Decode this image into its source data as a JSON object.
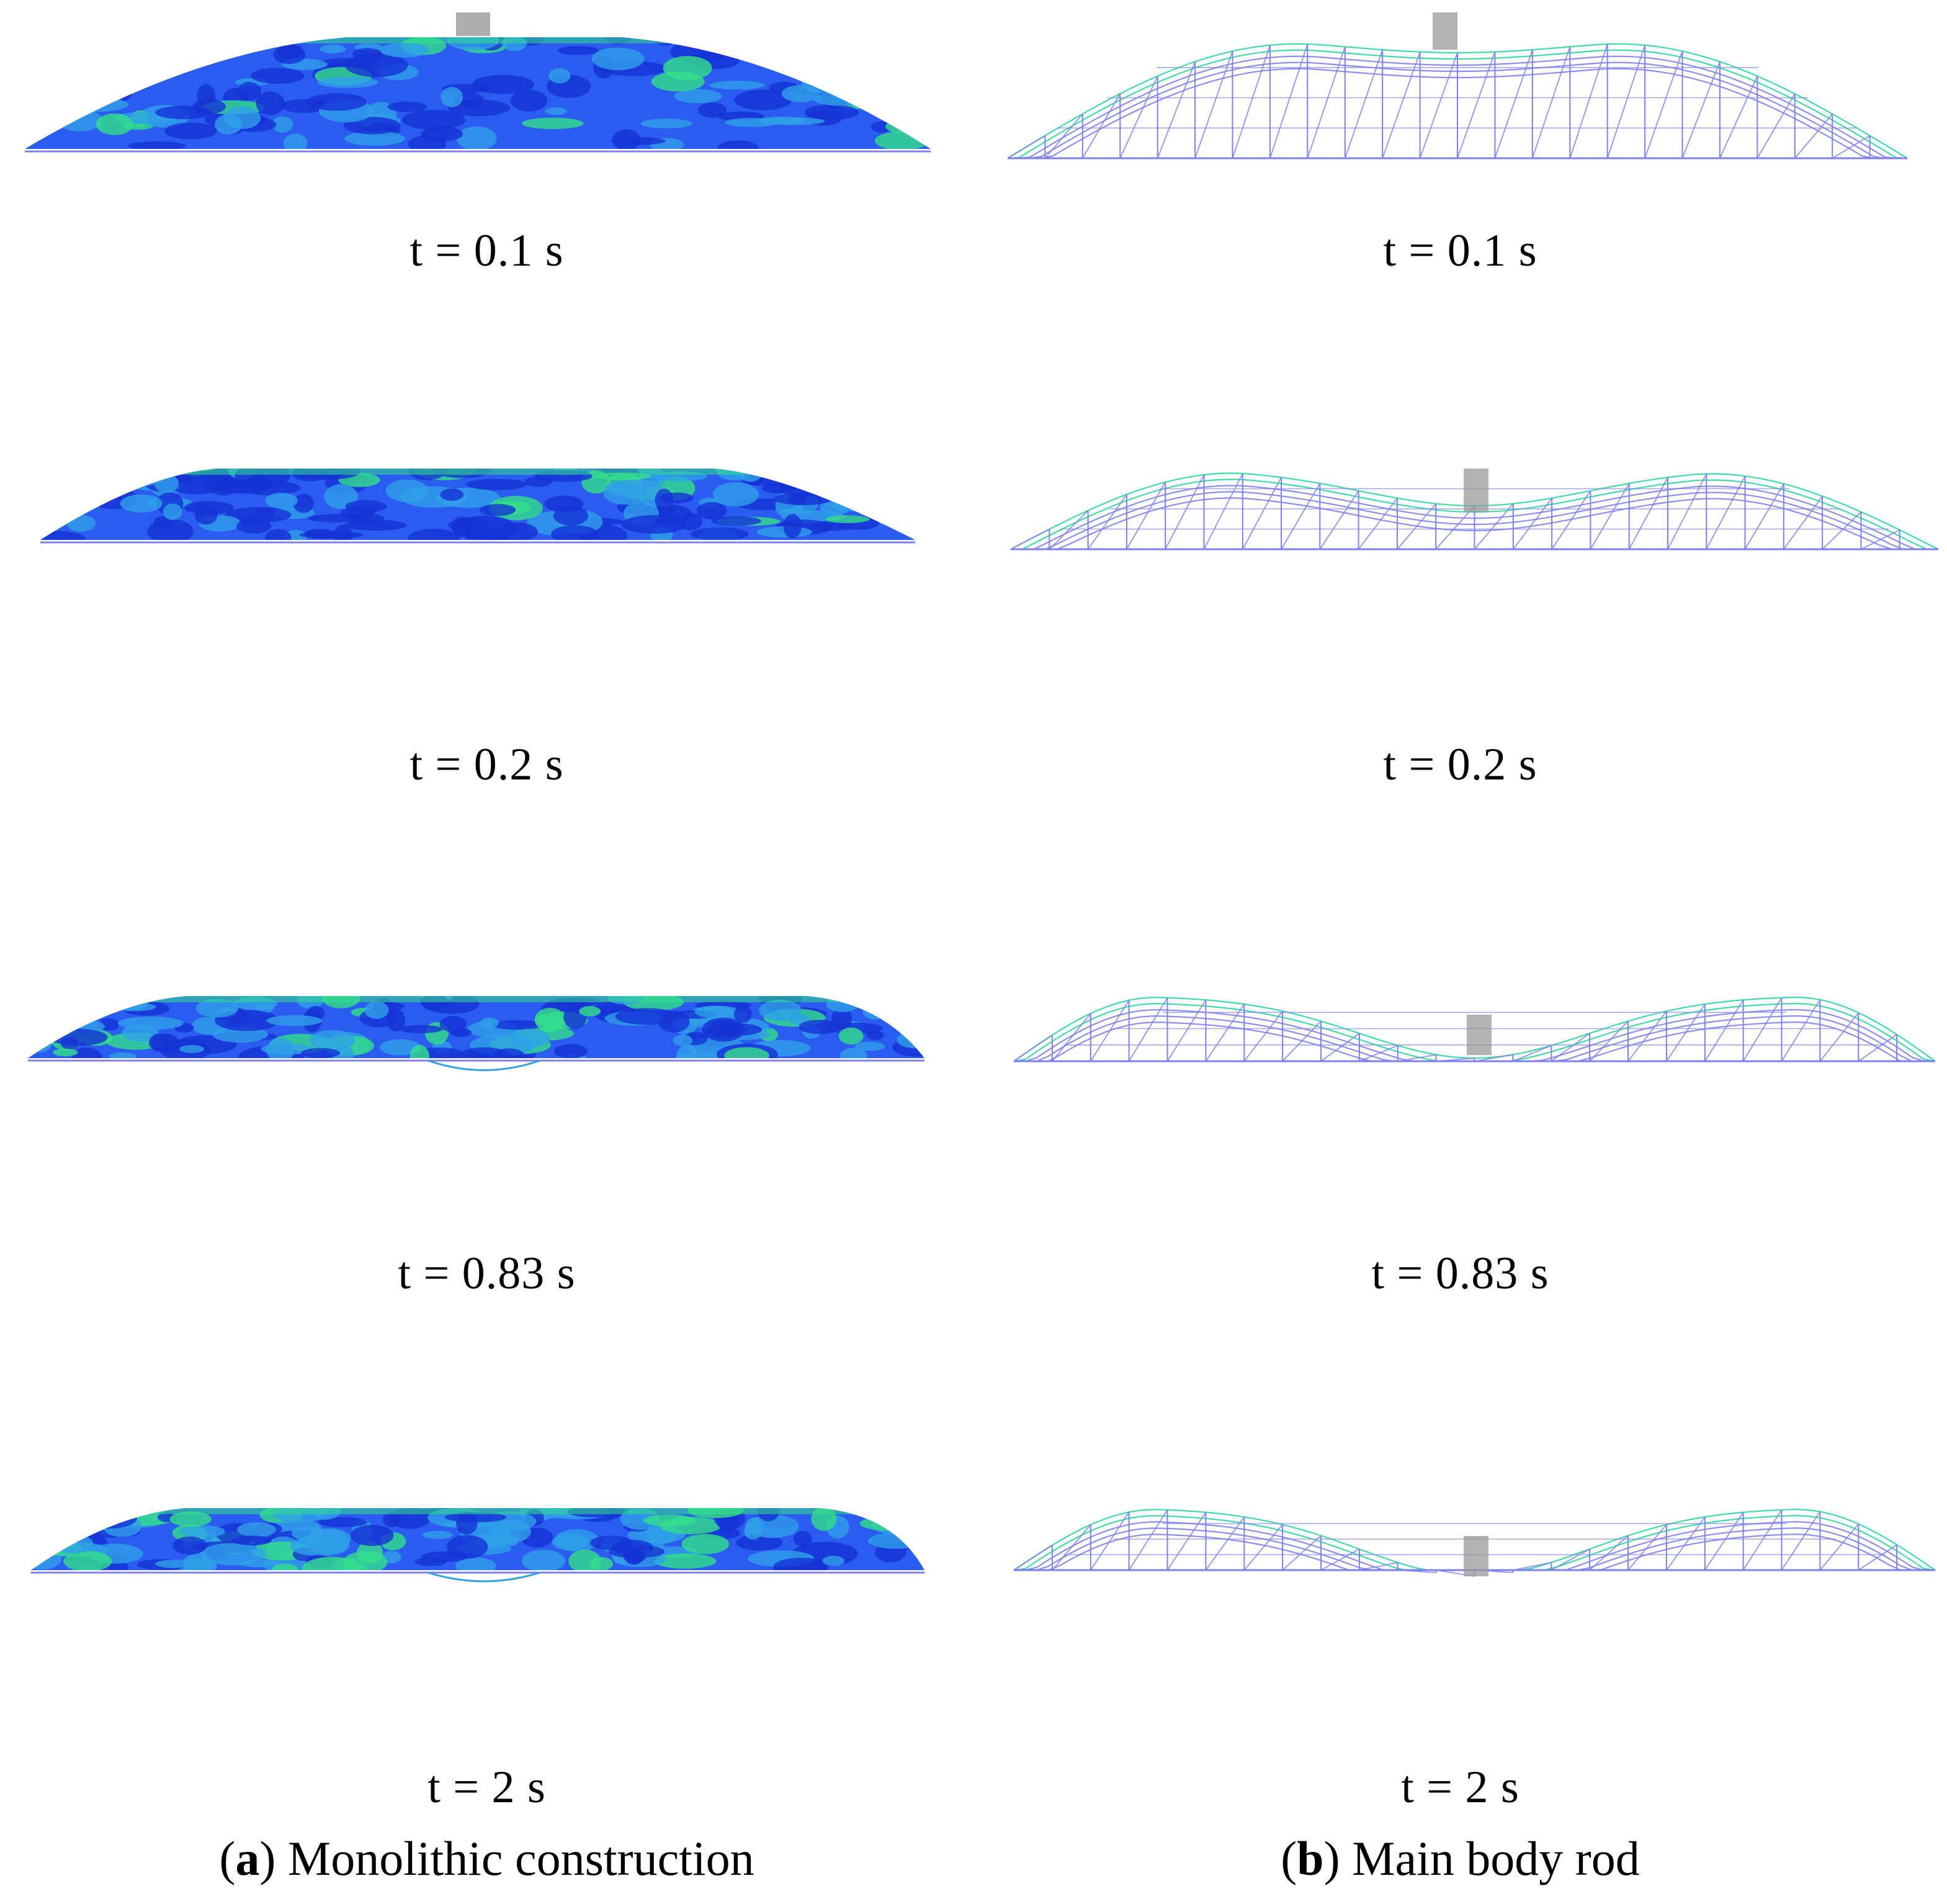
{
  "panels": [
    {
      "letter": "a",
      "caption": "Monolithic construction",
      "style": "shell",
      "frames": [
        {
          "time": "t = 0.1 s"
        },
        {
          "time": "t = 0.2 s"
        },
        {
          "time": "t = 0.83 s"
        },
        {
          "time": "t = 2 s"
        }
      ]
    },
    {
      "letter": "b",
      "caption": "Main body rod",
      "style": "truss",
      "frames": [
        {
          "time": "t = 0.1 s"
        },
        {
          "time": "t = 0.2 s"
        },
        {
          "time": "t = 0.83 s"
        },
        {
          "time": "t = 2 s"
        }
      ]
    }
  ],
  "colors": {
    "shell_dark": "#1532d6",
    "shell_mid": "#2a5cf0",
    "shell_light": "#2fa0e8",
    "highlight": "#33e08a",
    "truss_line": "#7f7ff0",
    "truss_hot": "#2bd6a0",
    "impactor": "#9a9a9a"
  }
}
